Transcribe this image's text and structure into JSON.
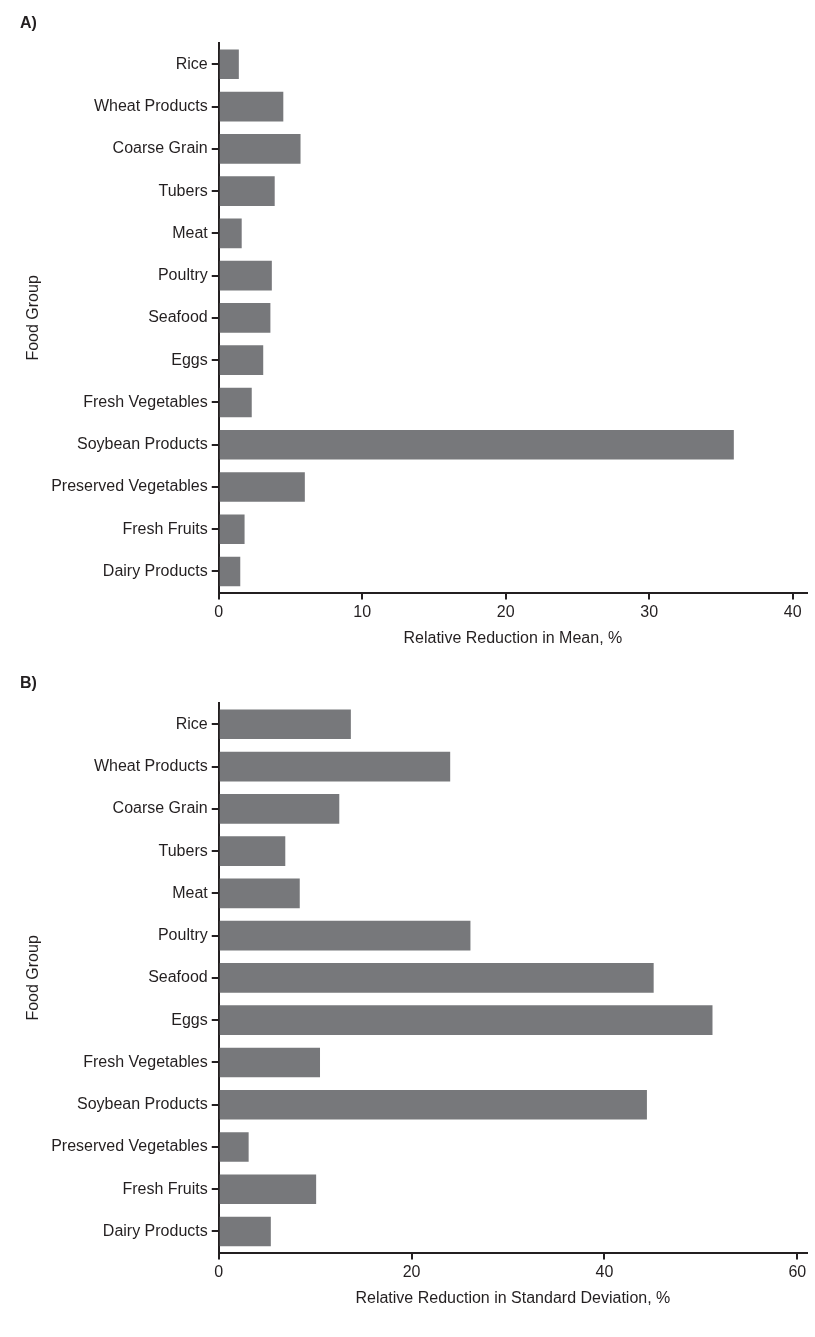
{
  "chart_data": [
    {
      "type": "bar",
      "title": "A)",
      "orientation": "horizontal",
      "xlabel": "Relative Reduction in Mean, %",
      "ylabel": "Food Group",
      "categories": [
        "Rice",
        "Wheat Products",
        "Coarse Grain",
        "Tubers",
        "Meat",
        "Poultry",
        "Seafood",
        "Eggs",
        "Fresh Vegetables",
        "Soybean Products",
        "Preserved Vegetables",
        "Fresh Fruits",
        "Dairy Products"
      ],
      "values": [
        1.4,
        4.5,
        5.7,
        3.9,
        1.6,
        3.7,
        3.6,
        3.1,
        2.3,
        35.9,
        6.0,
        1.8,
        1.5
      ],
      "color": "#77787b",
      "xlim": [
        0,
        41
      ],
      "xticks": [
        0,
        10,
        20,
        30,
        40
      ]
    },
    {
      "type": "bar",
      "title": "B)",
      "orientation": "horizontal",
      "xlabel": "Relative Reduction in Standard Deviation, %",
      "ylabel": "Food Group",
      "categories": [
        "Rice",
        "Wheat Products",
        "Coarse Grain",
        "Tubers",
        "Meat",
        "Poultry",
        "Seafood",
        "Eggs",
        "Fresh Vegetables",
        "Soybean Products",
        "Preserved Vegetables",
        "Fresh Fruits",
        "Dairy Products"
      ],
      "values": [
        13.7,
        24.0,
        12.5,
        6.9,
        8.4,
        26.1,
        45.1,
        51.2,
        10.5,
        44.4,
        3.1,
        10.1,
        5.4
      ],
      "color": "#77787b",
      "xlim": [
        0,
        61
      ],
      "xticks": [
        0,
        20,
        40,
        60
      ]
    }
  ]
}
